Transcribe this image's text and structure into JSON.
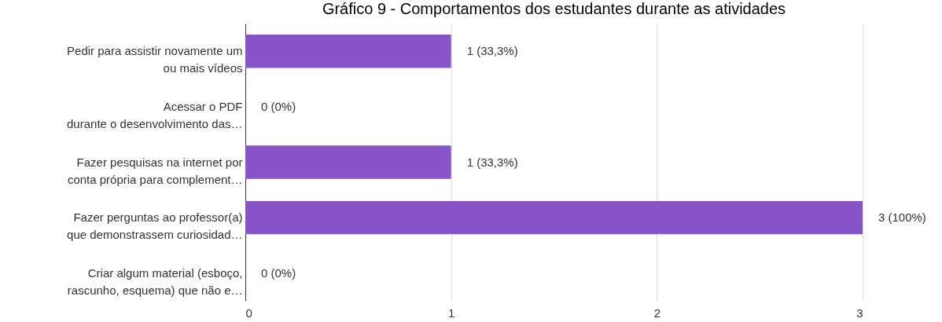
{
  "chart_data": {
    "type": "bar",
    "orientation": "horizontal",
    "title": "Gráfico 9 - Comportamentos dos estudantes durante as atividades",
    "categories": [
      "Pedir para assistir novamente um\nou mais vídeos",
      "Acessar o PDF\ndurante o desenvolvimento das…",
      "Fazer pesquisas na internet por\nconta própria para complement…",
      "Fazer perguntas ao professor(a)\nque demonstrassem curiosidad…",
      "Criar algum material (esboço,\nrascunho, esquema) que não e…"
    ],
    "values": [
      1,
      0,
      1,
      3,
      0
    ],
    "value_labels": [
      "1 (33,3%)",
      "0 (0%)",
      "1 (33,3%)",
      "3 (100%)",
      "0 (0%)"
    ],
    "color": "#8755c7",
    "xlim": [
      0,
      3
    ],
    "xticks": [
      0,
      1,
      2,
      3
    ],
    "grid": "x"
  }
}
